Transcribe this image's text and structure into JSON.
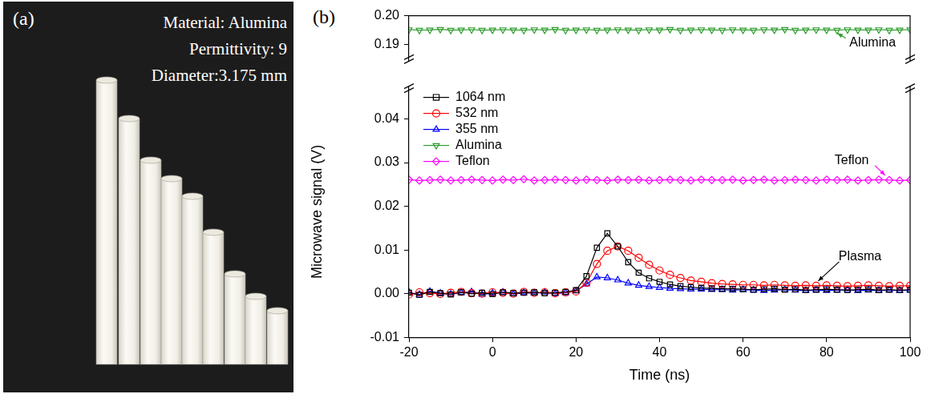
{
  "photo_panel": {
    "panel_label": "(a)",
    "texts": [
      "Material: Alumina",
      "Permittivity: 9",
      "Diameter:3.175 mm"
    ]
  },
  "chart_data": {
    "type": "line",
    "panel_label": "(b)",
    "xlabel": "Time (ns)",
    "ylabel": "Microwave signal (V)",
    "annotations": [
      "Alumina",
      "Teflon",
      "Plasma"
    ],
    "x": [
      -20,
      -17.5,
      -15,
      -12.5,
      -10,
      -7.5,
      -5,
      -2.5,
      0,
      2.5,
      5,
      7.5,
      10,
      12.5,
      15,
      17.5,
      20,
      22.5,
      25,
      27.5,
      30,
      32.5,
      35,
      37.5,
      40,
      42.5,
      45,
      47.5,
      50,
      52.5,
      55,
      57.5,
      60,
      62.5,
      65,
      67.5,
      70,
      72.5,
      75,
      77.5,
      80,
      82.5,
      85,
      87.5,
      90,
      92.5,
      95,
      97.5,
      100
    ],
    "xlim": [
      -20,
      100
    ],
    "xticks": [
      -20,
      0,
      20,
      40,
      60,
      80,
      100
    ],
    "ylim": [
      -0.01,
      0.0475
    ],
    "yticks": [
      -0.01,
      {
        "value": 0,
        "label": "0.00"
      },
      0.01,
      0.02,
      0.03,
      0.04
    ],
    "y2lim": [
      0.184,
      0.2
    ],
    "y2ticks": [
      0.19,
      {
        "value": 0.2,
        "label": "0.20"
      }
    ],
    "grid": false,
    "legend": "upper left",
    "series": [
      {
        "name": "1064 nm",
        "color": "#000000",
        "marker": "square",
        "values": [
          0.0002,
          -0.0003,
          0.0004,
          0.0001,
          -0.0002,
          0.0003,
          0,
          0.0002,
          -0.0001,
          0.0003,
          0.0001,
          0.0002,
          0.0003,
          0.0001,
          0.0002,
          0.0004,
          0.0008,
          0.004,
          0.0105,
          0.0138,
          0.0108,
          0.0072,
          0.0048,
          0.0035,
          0.0027,
          0.0021,
          0.0017,
          0.0015,
          0.0013,
          0.0012,
          0.0011,
          0.0011,
          0.001,
          0.0009,
          0.001,
          0.0011,
          0.0009,
          0.001,
          0.0008,
          0.0009,
          0.001,
          0.0009,
          0.0008,
          0.0009,
          0.001,
          0.0008,
          0.0009,
          0.0008,
          0.0009
        ]
      },
      {
        "name": "532 nm",
        "color": "#ff0000",
        "marker": "circle",
        "values": [
          -0.0002,
          0.0003,
          0.0001,
          -0.0001,
          0.0002,
          0.0004,
          0.0001,
          0,
          0.0003,
          0.0002,
          0,
          0.0004,
          0.0002,
          0.0003,
          0.0001,
          0.0003,
          0.0005,
          0.0025,
          0.0068,
          0.0098,
          0.0108,
          0.0098,
          0.0082,
          0.0066,
          0.0053,
          0.0043,
          0.0036,
          0.003,
          0.0027,
          0.0024,
          0.0022,
          0.0021,
          0.002,
          0.002,
          0.0019,
          0.002,
          0.0019,
          0.0018,
          0.0019,
          0.0018,
          0.0019,
          0.0018,
          0.0017,
          0.0018,
          0.0019,
          0.0018,
          0.0017,
          0.0018,
          0.0018
        ]
      },
      {
        "name": "355 nm",
        "color": "#0000ff",
        "marker": "triangle",
        "values": [
          0.0003,
          -0.0002,
          0.0005,
          0.0001,
          -0.0001,
          0.0002,
          0.0004,
          -0.0002,
          0.0001,
          0.0003,
          -0.0001,
          0.0002,
          0.0001,
          0.0003,
          0,
          0.0002,
          0.0006,
          0.0022,
          0.0038,
          0.0036,
          0.0031,
          0.0024,
          0.0019,
          0.0016,
          0.0014,
          0.0012,
          0.0011,
          0.001,
          0.001,
          0.0009,
          0.0009,
          0.0008,
          0.0009,
          0.0008,
          0.0007,
          0.0008,
          0.0009,
          0.0008,
          0.0007,
          0.0008,
          0.0007,
          0.0008,
          0.0009,
          0.0007,
          0.0008,
          0.0007,
          0.0008,
          0.0007,
          0.0008
        ]
      },
      {
        "name": "Alumina",
        "color": "#2e9e2e",
        "marker": "triangle-down",
        "axis": "y2",
        "values": [
          0.1951,
          0.1949,
          0.195,
          0.1952,
          0.1949,
          0.195,
          0.1951,
          0.1949,
          0.195,
          0.1951,
          0.195,
          0.1949,
          0.1951,
          0.195,
          0.1952,
          0.1949,
          0.195,
          0.1951,
          0.1949,
          0.195,
          0.1951,
          0.195,
          0.1949,
          0.1951,
          0.195,
          0.1952,
          0.1949,
          0.195,
          0.1951,
          0.195,
          0.1949,
          0.1951,
          0.195,
          0.1949,
          0.1951,
          0.195,
          0.1952,
          0.1949,
          0.195,
          0.1951,
          0.195,
          0.1949,
          0.1951,
          0.195,
          0.195,
          0.1951,
          0.1949,
          0.195,
          0.1951
        ]
      },
      {
        "name": "Teflon",
        "color": "#ff00ff",
        "marker": "diamond",
        "values": [
          0.0261,
          0.0259,
          0.026,
          0.0261,
          0.0259,
          0.026,
          0.0261,
          0.026,
          0.0259,
          0.0261,
          0.026,
          0.0262,
          0.0259,
          0.026,
          0.0261,
          0.026,
          0.0259,
          0.0261,
          0.026,
          0.0259,
          0.0261,
          0.026,
          0.0261,
          0.0259,
          0.026,
          0.0261,
          0.026,
          0.0259,
          0.0261,
          0.026,
          0.026,
          0.0261,
          0.0259,
          0.026,
          0.0261,
          0.0259,
          0.026,
          0.0261,
          0.026,
          0.0259,
          0.0261,
          0.026,
          0.0261,
          0.0259,
          0.026,
          0.0261,
          0.026,
          0.0259,
          0.026
        ]
      }
    ]
  }
}
